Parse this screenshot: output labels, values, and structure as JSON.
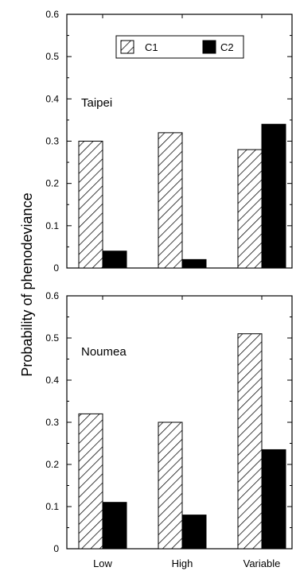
{
  "chart_data": [
    {
      "type": "bar",
      "panel_label": "Taipei",
      "categories": [
        "Low",
        "High",
        "Variable"
      ],
      "series": [
        {
          "name": "C1",
          "values": [
            0.3,
            0.32,
            0.28
          ]
        },
        {
          "name": "C2",
          "values": [
            0.04,
            0.02,
            0.34
          ]
        }
      ],
      "ylim": [
        0,
        0.6
      ],
      "yticks": [
        "0",
        "0.1",
        "0.2",
        "0.3",
        "0.4",
        "0.5",
        "0.6"
      ],
      "legend_position": "top-center"
    },
    {
      "type": "bar",
      "panel_label": "Noumea",
      "categories": [
        "Low",
        "High",
        "Variable"
      ],
      "series": [
        {
          "name": "C1",
          "values": [
            0.32,
            0.3,
            0.51
          ]
        },
        {
          "name": "C2",
          "values": [
            0.11,
            0.08,
            0.235
          ]
        }
      ],
      "ylim": [
        0,
        0.6
      ],
      "yticks": [
        "0",
        "0.1",
        "0.2",
        "0.3",
        "0.4",
        "0.5",
        "0.6"
      ]
    }
  ],
  "ylabel": "Probability of phenodeviance",
  "xcategories": [
    "Low",
    "High",
    "Variable"
  ],
  "legend": {
    "c1_label": "C1",
    "c2_label": "C2"
  },
  "colors": {
    "c1_fill": "hatched",
    "c2_fill": "#000000"
  }
}
